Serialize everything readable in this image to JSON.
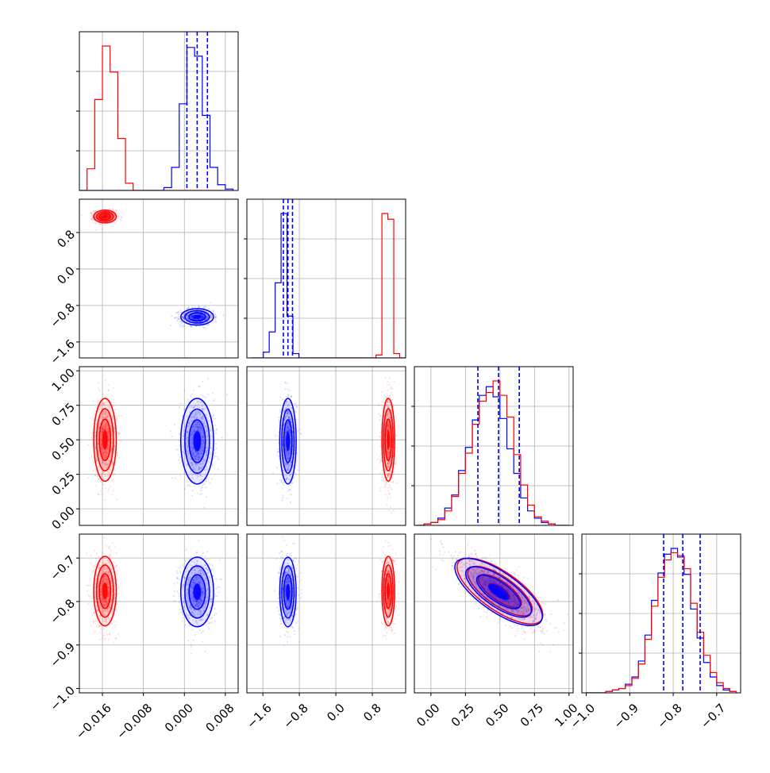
{
  "chart_data": {
    "type": "corner",
    "grid": true,
    "colors": {
      "series_a": "#0000ff",
      "series_b": "#ff0000"
    },
    "parameters": [
      {
        "range": [
          -0.0205,
          0.0105
        ],
        "ticks": [
          -0.016,
          -0.008,
          0.0,
          0.008
        ],
        "tick_labels": [
          "−0.016",
          "−0.008",
          "0.000",
          "0.008"
        ]
      },
      {
        "range": [
          -1.95,
          1.53
        ],
        "ticks": [
          -1.6,
          -0.8,
          0.0,
          0.8
        ],
        "tick_labels": [
          "−1.6",
          "−0.8",
          "0.0",
          "0.8"
        ]
      },
      {
        "range": [
          -0.12,
          1.03
        ],
        "ticks": [
          0.0,
          0.25,
          0.5,
          0.75,
          1.0
        ],
        "tick_labels": [
          "0.00",
          "0.25",
          "0.50",
          "0.75",
          "1.00"
        ]
      },
      {
        "range": [
          -1.01,
          -0.645
        ],
        "ticks": [
          -1.0,
          -0.9,
          -0.8,
          -0.7
        ],
        "tick_labels": [
          "−1.0",
          "−0.9",
          "−0.8",
          "−0.7"
        ]
      }
    ],
    "series": [
      {
        "color": "#0000ff",
        "mean": [
          0.0025,
          -1.05,
          0.49,
          -0.778
        ],
        "sd": [
          0.0016,
          0.09,
          0.155,
          0.04
        ],
        "corr_3_4": -0.75
      },
      {
        "color": "#ff0000",
        "mean": [
          -0.0155,
          1.15,
          0.5,
          -0.776
        ],
        "sd": [
          0.0011,
          0.07,
          0.15,
          0.04
        ],
        "corr_3_4": -0.75
      }
    ],
    "histograms": [
      {
        "bin_edges": [
          -0.0205,
          -0.019,
          -0.0175,
          -0.016,
          -0.0145,
          -0.013,
          -0.0115,
          -0.01,
          -0.0085,
          -0.007,
          -0.0055,
          -0.004,
          -0.0025,
          -0.001,
          0.0005,
          0.002,
          0.0035,
          0.005,
          0.0065,
          0.008,
          0.0095
        ],
        "series": [
          [
            0,
            0,
            0,
            0,
            0,
            0,
            0,
            0,
            0,
            0,
            0,
            0.02,
            0.16,
            0.6,
            0.99,
            0.93,
            0.52,
            0.16,
            0.04,
            0.01
          ],
          [
            0,
            0.15,
            0.63,
            1.0,
            0.82,
            0.36,
            0.05,
            0,
            0,
            0,
            0,
            0,
            0,
            0,
            0,
            0,
            0,
            0,
            0,
            0
          ]
        ],
        "quantile_lines": [
          0.0005,
          0.0025,
          0.0045
        ]
      },
      {
        "bin_edges": [
          -1.85,
          -1.72,
          -1.59,
          -1.46,
          -1.33,
          -1.2,
          -1.07,
          -0.94,
          -0.81,
          -0.68,
          -0.55,
          -0.42,
          -0.29,
          -0.16,
          -0.03,
          0.1,
          0.23,
          0.36,
          0.49,
          0.62,
          0.75,
          0.88,
          1.01,
          1.14,
          1.27,
          1.4,
          1.53
        ],
        "series": [
          [
            0,
            0,
            0.04,
            0.18,
            0.52,
            1.0,
            0.29,
            0.03,
            0,
            0,
            0,
            0,
            0,
            0,
            0,
            0,
            0,
            0,
            0,
            0,
            0,
            0,
            0,
            0,
            0,
            0
          ],
          [
            0,
            0,
            0,
            0,
            0,
            0,
            0,
            0,
            0,
            0,
            0,
            0,
            0,
            0,
            0,
            0,
            0,
            0,
            0,
            0,
            0,
            0.02,
            1.0,
            0.96,
            0.03,
            0
          ]
        ],
        "quantile_lines": [
          -1.15,
          -1.05,
          -0.95
        ]
      },
      {
        "bin_edges": [
          -0.1,
          -0.05,
          0.0,
          0.05,
          0.1,
          0.15,
          0.2,
          0.25,
          0.3,
          0.35,
          0.4,
          0.45,
          0.5,
          0.55,
          0.6,
          0.65,
          0.7,
          0.75,
          0.8,
          0.85,
          0.9,
          0.95,
          1.0
        ],
        "series": [
          [
            0,
            0.01,
            0.02,
            0.05,
            0.12,
            0.21,
            0.38,
            0.54,
            0.73,
            0.9,
            0.96,
            0.89,
            0.74,
            0.53,
            0.36,
            0.19,
            0.1,
            0.05,
            0.02,
            0.01,
            0,
            0
          ],
          [
            0,
            0.01,
            0.02,
            0.04,
            0.1,
            0.2,
            0.36,
            0.5,
            0.7,
            0.86,
            0.92,
            1.0,
            0.9,
            0.75,
            0.49,
            0.28,
            0.14,
            0.06,
            0.03,
            0.01,
            0,
            0
          ]
        ],
        "quantile_lines": [
          0.34,
          0.49,
          0.64
        ]
      },
      {
        "bin_edges": [
          -1.0,
          -0.985,
          -0.97,
          -0.955,
          -0.94,
          -0.925,
          -0.91,
          -0.895,
          -0.88,
          -0.865,
          -0.85,
          -0.835,
          -0.82,
          -0.805,
          -0.79,
          -0.775,
          -0.76,
          -0.745,
          -0.73,
          -0.715,
          -0.7,
          -0.685,
          -0.67,
          -0.655
        ],
        "series": [
          [
            0,
            0,
            0,
            0.01,
            0.02,
            0.03,
            0.06,
            0.11,
            0.22,
            0.4,
            0.64,
            0.83,
            0.96,
            1.0,
            0.94,
            0.82,
            0.58,
            0.38,
            0.21,
            0.11,
            0.05,
            0.02,
            0.01
          ],
          [
            0,
            0,
            0,
            0.01,
            0.02,
            0.03,
            0.05,
            0.1,
            0.2,
            0.37,
            0.6,
            0.8,
            0.92,
            0.97,
            0.95,
            0.86,
            0.62,
            0.42,
            0.26,
            0.14,
            0.07,
            0.03,
            0.01
          ]
        ],
        "quantile_lines": [
          -0.822,
          -0.778,
          -0.738
        ]
      }
    ]
  }
}
